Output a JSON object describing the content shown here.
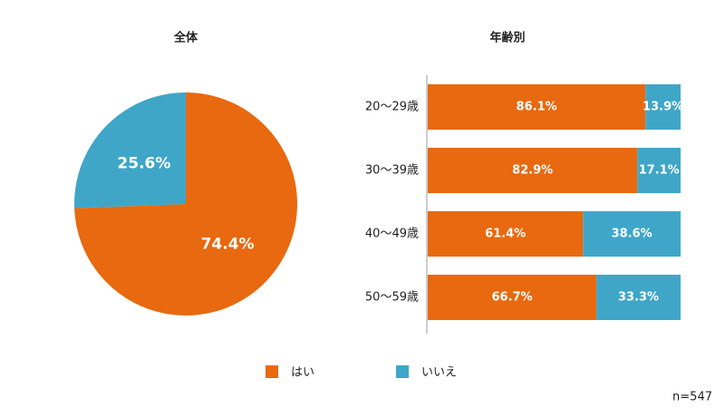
{
  "chart_data": [
    {
      "type": "pie",
      "title": "全体",
      "values": [
        74.4,
        25.6
      ],
      "value_labels": [
        "74.4%",
        "25.6%"
      ],
      "colors": [
        "#e8690f",
        "#3fa6c8"
      ]
    },
    {
      "type": "stacked_barh",
      "title": "年齢別",
      "categories": [
        "20～29歳",
        "30～39歳",
        "40～49歳",
        "50～59歳"
      ],
      "xlim": [
        0,
        100
      ],
      "series": [
        {
          "name": "はい",
          "color": "#e8690f",
          "values": [
            86.1,
            82.9,
            61.4,
            66.7
          ],
          "value_labels": [
            "86.1%",
            "82.9%",
            "61.4%",
            "66.7%"
          ]
        },
        {
          "name": "いいえ",
          "color": "#3fa6c8",
          "values": [
            13.9,
            17.1,
            38.6,
            33.3
          ],
          "value_labels": [
            "13.9%",
            "17.1%",
            "38.6%",
            "33.3%"
          ]
        }
      ]
    }
  ],
  "note": "n=547"
}
